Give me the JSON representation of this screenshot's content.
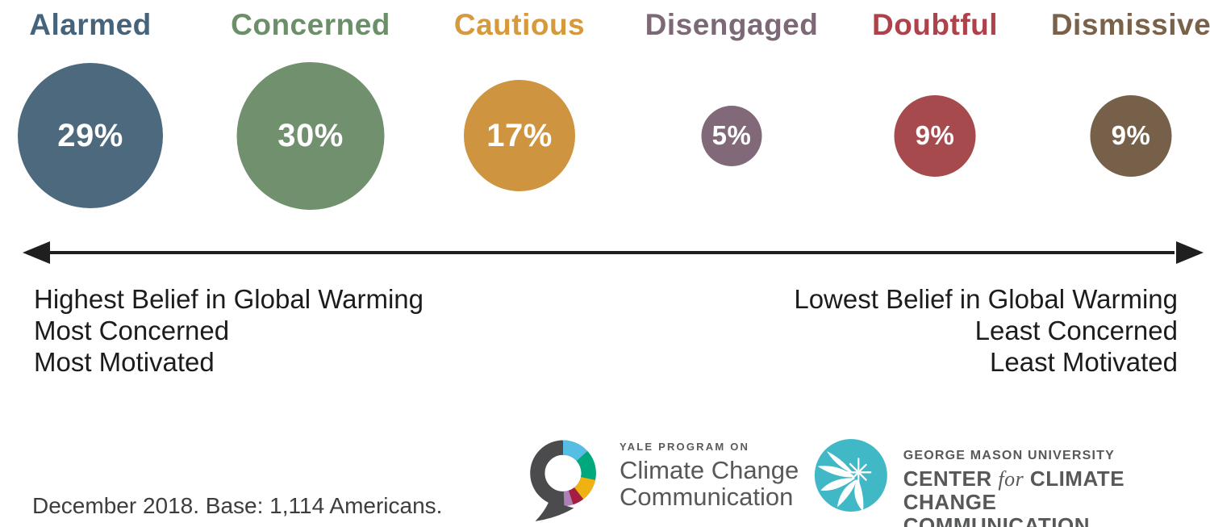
{
  "segments": [
    {
      "label": "Alarmed",
      "percent": 29,
      "percent_label": "29%",
      "color": "#4c697e",
      "label_color": "#45637a"
    },
    {
      "label": "Concerned",
      "percent": 30,
      "percent_label": "30%",
      "color": "#71906e",
      "label_color": "#6b8f68"
    },
    {
      "label": "Cautious",
      "percent": 17,
      "percent_label": "17%",
      "color": "#cf943f",
      "label_color": "#d6993c"
    },
    {
      "label": "Disengaged",
      "percent": 5,
      "percent_label": "5%",
      "color": "#82697a",
      "label_color": "#7c6877"
    },
    {
      "label": "Doubtful",
      "percent": 9,
      "percent_label": "9%",
      "color": "#a64a4e",
      "label_color": "#ae424a"
    },
    {
      "label": "Dismissive",
      "percent": 9,
      "percent_label": "9%",
      "color": "#77604a",
      "label_color": "#7a6149"
    }
  ],
  "axis": {
    "left_lines": [
      "Highest Belief in Global Warming",
      "Most Concerned",
      "Most Motivated"
    ],
    "right_lines": [
      "Lowest Belief in Global Warming",
      "Least Concerned",
      "Least Motivated"
    ]
  },
  "caption": "December 2018. Base: 1,114 Americans.",
  "logos": {
    "yale": {
      "eyebrow": "YALE PROGRAM ON",
      "line1": "Climate Change",
      "line2": "Communication",
      "icon_colors": {
        "gray": "#4b4b4d",
        "blue": "#56bde4",
        "green": "#00a87e",
        "gold": "#efb211",
        "crimson": "#a51e41",
        "lilac": "#af7fb5"
      }
    },
    "gmu": {
      "eyebrow": "GEORGE MASON UNIVERSITY",
      "center_prefix": "CENTER",
      "center_for": "for",
      "center_suffix": "CLIMATE CHANGE",
      "line2": "COMMUNICATION",
      "icon_color": "#41b8c6"
    }
  },
  "chart_data": {
    "type": "bar",
    "variant": "proportional-circles",
    "categories": [
      "Alarmed",
      "Concerned",
      "Cautious",
      "Disengaged",
      "Doubtful",
      "Dismissive"
    ],
    "values": [
      29,
      30,
      17,
      5,
      9,
      9
    ],
    "value_labels": [
      "29%",
      "30%",
      "17%",
      "5%",
      "9%",
      "9%"
    ],
    "colors": [
      "#4c697e",
      "#71906e",
      "#cf943f",
      "#82697a",
      "#a64a4e",
      "#77604a"
    ],
    "axis_annotation_left": "Highest Belief in Global Warming / Most Concerned / Most Motivated",
    "axis_annotation_right": "Lowest Belief in Global Warming / Least Concerned / Least Motivated",
    "note": "December 2018. Base: 1,114 Americans.",
    "legend_position": "none",
    "grid": false
  }
}
